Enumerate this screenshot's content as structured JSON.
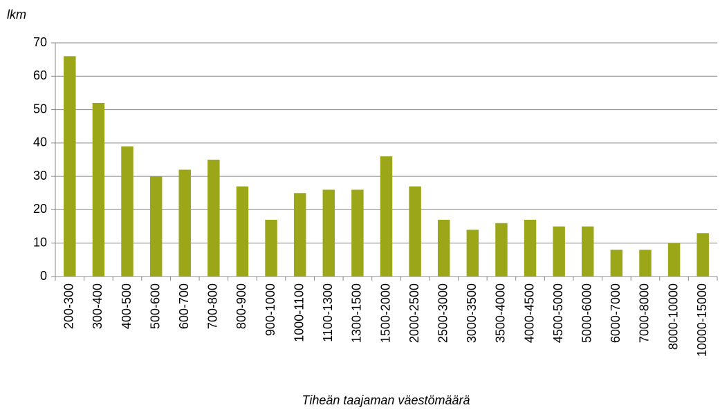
{
  "chart_data": {
    "type": "bar",
    "x_label": "Tiheän taajaman väestömäärä",
    "y_label": "lkm",
    "categories": [
      "200-300",
      "300-400",
      "400-500",
      "500-600",
      "600-700",
      "700-800",
      "800-900",
      "900-1000",
      "1000-1100",
      "1100-1300",
      "1300-1500",
      "1500-2000",
      "2000-2500",
      "2500-3000",
      "3000-3500",
      "3500-4000",
      "4000-4500",
      "4500-5000",
      "5000-6000",
      "6000-7000",
      "7000-8000",
      "8000-10000",
      "10000-15000"
    ],
    "values": [
      66,
      52,
      39,
      30,
      32,
      35,
      27,
      17,
      25,
      26,
      26,
      36,
      27,
      17,
      14,
      16,
      17,
      15,
      15,
      8,
      8,
      10,
      13
    ],
    "color": "#9ca619",
    "ylim": [
      0,
      70
    ],
    "yticks": [
      0,
      10,
      20,
      30,
      40,
      50,
      60,
      70
    ],
    "grid": true
  }
}
